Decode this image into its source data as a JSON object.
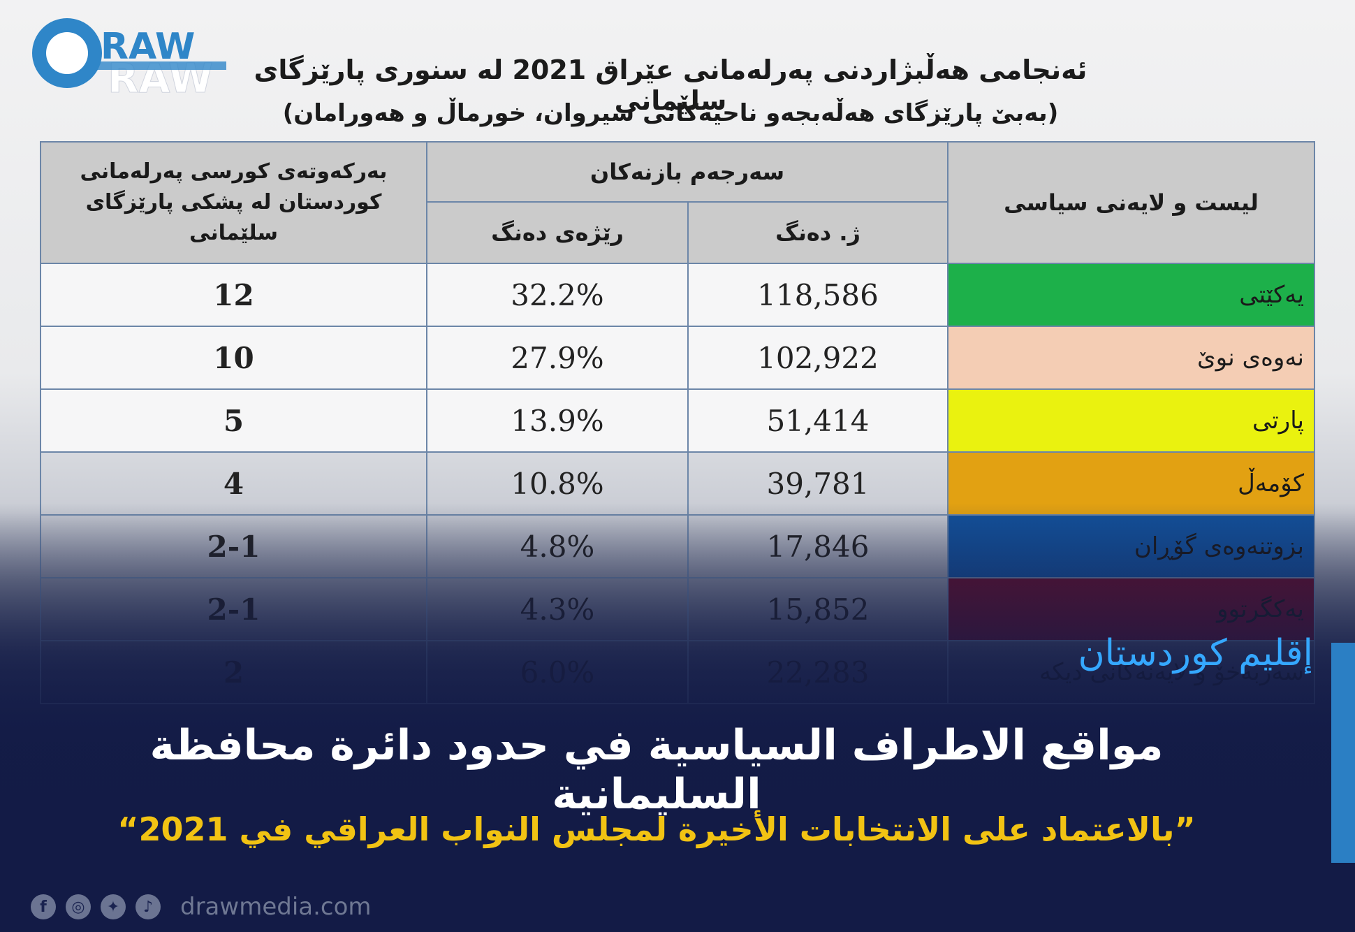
{
  "brand": {
    "name": "RAW",
    "website": "drawmedia.com"
  },
  "title": {
    "line1": "ئەنجامی هەڵبژاردنی پەرلەمانی عێراق 2021 لە سنوری پارێزگای سلێمانی",
    "line2": "(بەبێ پارێزگای هەڵەبجەو ناحیەکانی سیروان، خورماڵ و هەورامان)"
  },
  "table": {
    "headers": {
      "party": "لیست و لایەنی سیاسی",
      "total": "سەرجەم بازنەکان",
      "votes": "ژ. دەنگ",
      "percent": "رێژەی دەنگ",
      "seats_line1": "بەرکەوتەی کورسی پەرلەمانی",
      "seats_line2": "کوردستان لە پشکی پارێزگای",
      "seats_line3": "سلێمانی"
    },
    "rows": [
      {
        "party": "یەکێتی",
        "votes": "118,586",
        "percent": "32.2%",
        "seats": "12",
        "color": "#1db04a"
      },
      {
        "party": "نەوەی نوێ",
        "votes": "102,922",
        "percent": "27.9%",
        "seats": "10",
        "color": "#f4cdb4"
      },
      {
        "party": "پارتی",
        "votes": "51,414",
        "percent": "13.9%",
        "seats": "5",
        "color": "#eaf20f"
      },
      {
        "party": "کۆمەڵ",
        "votes": "39,781",
        "percent": "10.8%",
        "seats": "4",
        "color": "#e2a112"
      },
      {
        "party": "بزوتنەوەی گۆڕان",
        "votes": "17,846",
        "percent": "4.8%",
        "seats": "2-1",
        "color": "#13519b"
      },
      {
        "party": "یەکگرتوو",
        "votes": "15,852",
        "percent": "4.3%",
        "seats": "2-1",
        "color": "#6a0e2a"
      },
      {
        "party": "سەربەخۆ و لایەنەکانی دیکە",
        "votes": "22,283",
        "percent": "6.0%",
        "seats": "2",
        "color": ""
      }
    ]
  },
  "overlay": {
    "region": "إقليم كوردستان",
    "headline": "مواقع الاطراف السياسية في حدود دائرة محافظة السليمانية",
    "subline": "”بالاعتماد على الانتخابات الأخيرة لمجلس النواب العراقي في 2021“"
  },
  "social_icons": [
    "facebook-icon",
    "instagram-icon",
    "twitter-icon",
    "tiktok-icon"
  ],
  "colors": {
    "accent_blue": "#35a8ff",
    "headline_yellow": "#f2c313",
    "navy": "#131b46"
  }
}
